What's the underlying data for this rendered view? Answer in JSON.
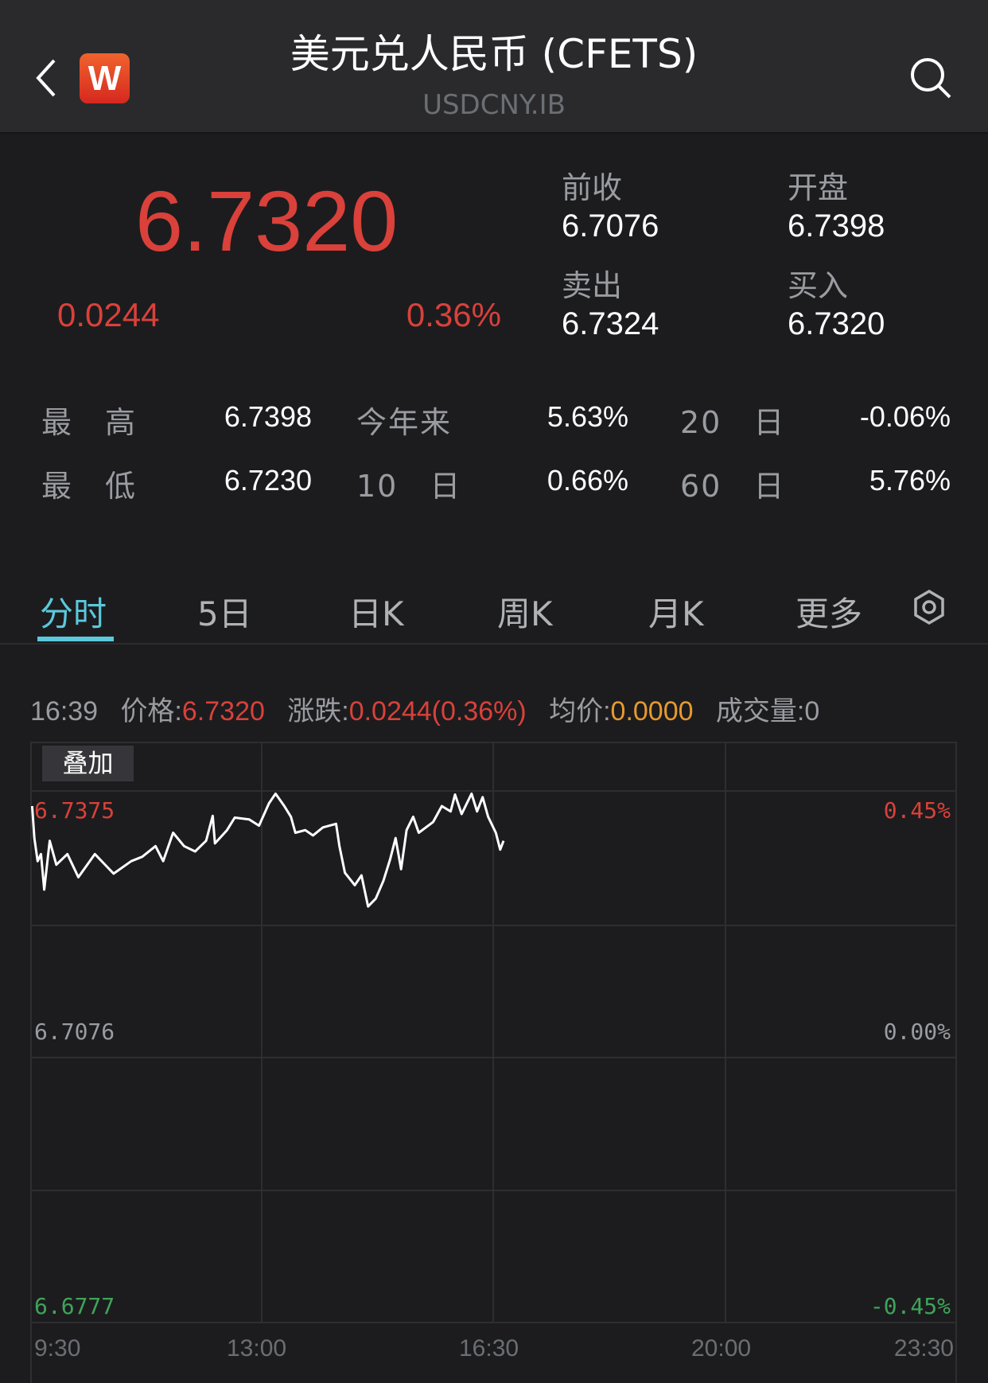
{
  "header": {
    "title": "美元兑人民币 (CFETS)",
    "subtitle": "USDCNY.IB",
    "logo_letter": "W",
    "back_icon": "chevron-left-icon",
    "search_icon": "search-icon"
  },
  "quote": {
    "price": "6.7320",
    "change": "0.0244",
    "change_pct": "0.36%",
    "prev_close_label": "前收",
    "prev_close": "6.7076",
    "open_label": "开盘",
    "open": "6.7398",
    "ask_label": "卖出",
    "ask": "6.7324",
    "bid_label": "买入",
    "bid": "6.7320"
  },
  "stats": [
    [
      {
        "label": "最　高",
        "value": "6.7398"
      },
      {
        "label": "今年来",
        "value": "5.63%"
      },
      {
        "label": "20　日",
        "value": "-0.06%"
      }
    ],
    [
      {
        "label": "最　低",
        "value": "6.7230"
      },
      {
        "label": "10　日",
        "value": "0.66%"
      },
      {
        "label": "60　日",
        "value": "5.76%"
      }
    ]
  ],
  "tabs": [
    {
      "label": "分时",
      "active": true
    },
    {
      "label": "5日"
    },
    {
      "label": "日K"
    },
    {
      "label": "周K"
    },
    {
      "label": "月K"
    },
    {
      "label": "更多"
    }
  ],
  "settings_icon": "hexagon-gear-icon",
  "info": {
    "time": "16:39",
    "price_label": "价格:",
    "price": "6.7320",
    "change_label": "涨跌:",
    "change": "0.0244(0.36%)",
    "avg_label": "均价:",
    "avg": "0.0000",
    "volume_label": "成交量:",
    "volume": "0"
  },
  "overlay_button": "叠加",
  "colors": {
    "up": "#d9413a",
    "down": "#3fa35a",
    "accent": "#5bc8dc",
    "avg": "#e69a2e"
  },
  "chart_data": {
    "type": "line",
    "ylim": [
      6.6777,
      6.7375
    ],
    "left_ticks": [
      "6.7375",
      "6.7076",
      "6.6777"
    ],
    "right_ticks": [
      "0.45%",
      "0.00%",
      "-0.45%"
    ],
    "x_ticks": [
      "9:30",
      "13:00",
      "16:30",
      "20:00",
      "23:30"
    ],
    "x_range": [
      "9:30",
      "23:30"
    ],
    "grid": true,
    "x": [
      "9:31",
      "9:33",
      "9:36",
      "9:39",
      "9:42",
      "9:47",
      "9:53",
      "10:03",
      "10:13",
      "10:28",
      "10:45",
      "11:01",
      "11:11",
      "11:23",
      "11:30",
      "11:39",
      "11:49",
      "11:59",
      "12:09",
      "12:15",
      "12:17",
      "12:28",
      "12:35",
      "12:48",
      "12:57",
      "13:06",
      "13:12",
      "13:20",
      "13:26",
      "13:30",
      "13:39",
      "13:46",
      "13:55",
      "14:07",
      "14:10",
      "14:15",
      "14:24",
      "14:30",
      "14:36",
      "14:43",
      "14:50",
      "14:56",
      "15:01",
      "15:06",
      "15:11",
      "15:17",
      "15:22",
      "15:35",
      "15:43",
      "15:51",
      "15:55",
      "16:01",
      "16:10",
      "16:15",
      "16:20",
      "16:25",
      "16:32",
      "16:36",
      "16:39"
    ],
    "y": [
      6.7358,
      6.7322,
      6.7296,
      6.7304,
      6.7264,
      6.7319,
      6.7292,
      6.7304,
      6.7278,
      6.7304,
      6.7282,
      6.7296,
      6.7301,
      6.7313,
      6.7296,
      6.7328,
      6.7313,
      6.7307,
      6.7319,
      6.7347,
      6.7316,
      6.7331,
      6.7345,
      6.7343,
      6.7336,
      6.7361,
      6.7372,
      6.7358,
      6.7346,
      6.7328,
      6.7331,
      6.7325,
      6.7334,
      6.7338,
      6.7313,
      6.7283,
      6.7269,
      6.728,
      6.7245,
      6.7254,
      6.7274,
      6.7298,
      6.7322,
      6.7287,
      6.7331,
      6.7346,
      6.7328,
      6.734,
      6.7358,
      6.7352,
      6.7371,
      6.7349,
      6.7372,
      6.7352,
      6.7368,
      6.7346,
      6.7328,
      6.7309,
      6.7319
    ]
  }
}
